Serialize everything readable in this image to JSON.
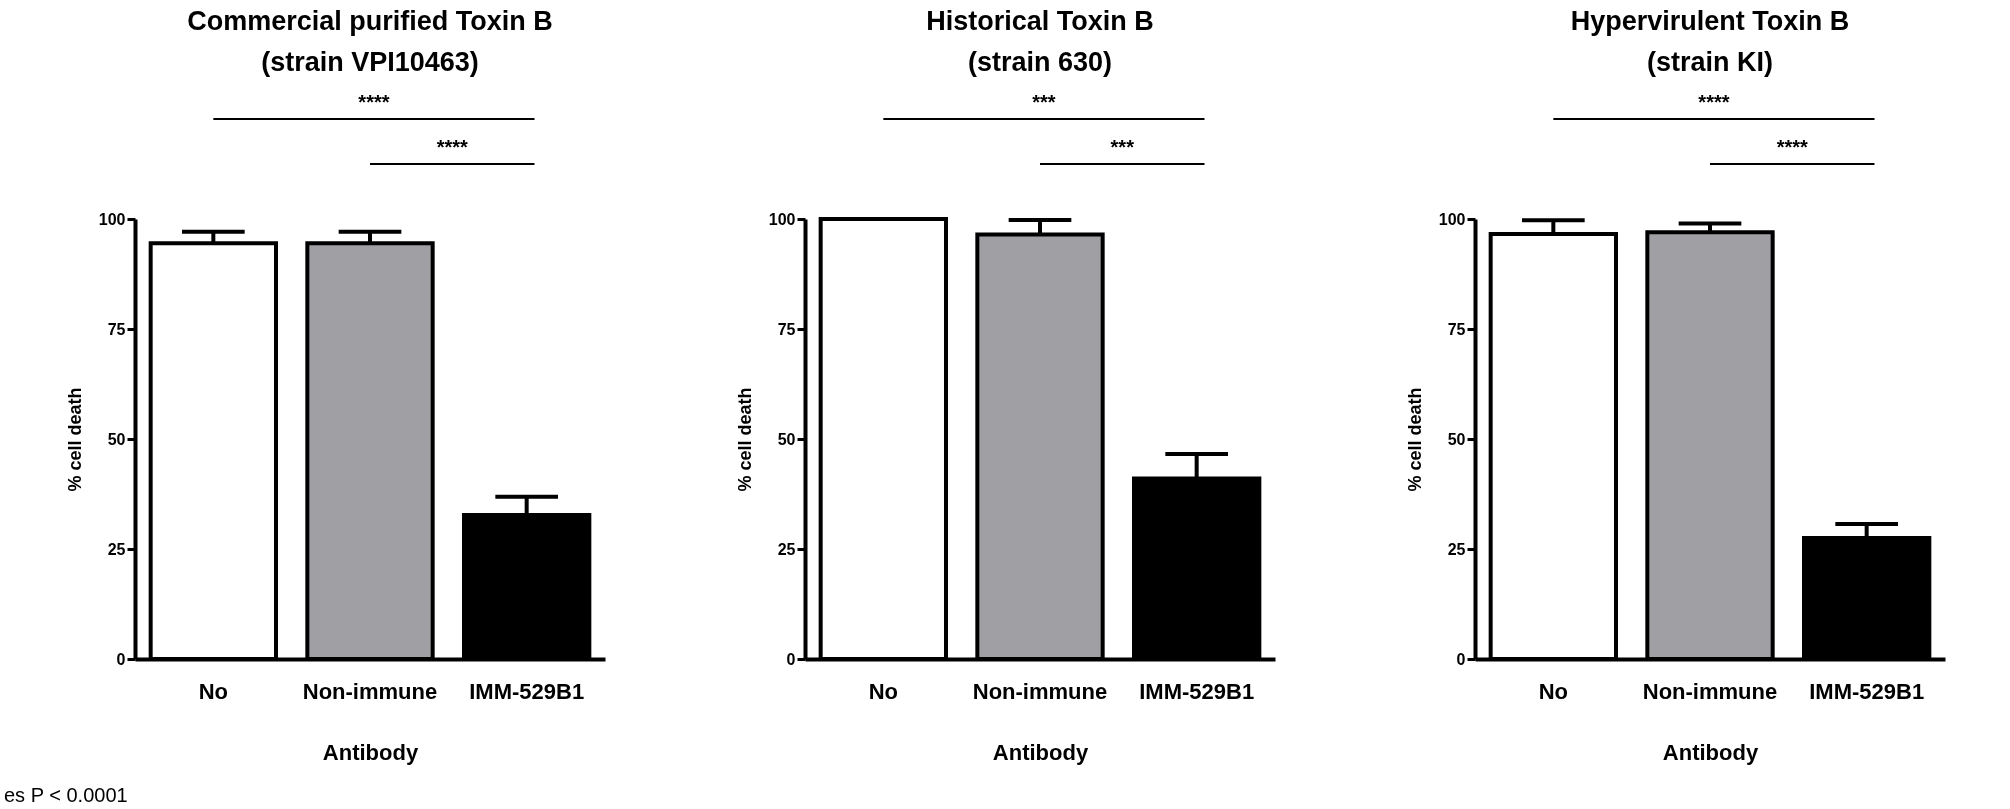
{
  "chart_data": [
    {
      "type": "bar",
      "title": "Commercial purified Toxin B",
      "subtitle": "(strain VPI10463)",
      "xlabel": "Antibody",
      "ylabel": "% cell death",
      "categories": [
        "No",
        "Non-immune",
        "IMM-529B1"
      ],
      "values": [
        94.5,
        94.5,
        32.7
      ],
      "colors": [
        "#ffffff",
        "#a0a0a4",
        "#000000"
      ],
      "errors": [
        [
          94.5,
          97.1
        ],
        [
          94.5,
          97.1
        ],
        [
          32.7,
          36.9
        ]
      ],
      "ylim": [
        0,
        100
      ],
      "yticks": [
        0,
        25,
        50,
        75,
        100
      ],
      "annotations": [
        "****",
        "****",
        "es P < 0.0001"
      ]
    },
    {
      "type": "bar",
      "title": "Historical Toxin B",
      "subtitle": "(strain 630)",
      "xlabel": "Antibody",
      "ylabel": "% cell death",
      "categories": [
        "No",
        "Non-immune",
        "IMM-529B1"
      ],
      "values": [
        100,
        96.5,
        41.0
      ],
      "colors": [
        "#ffffff",
        "#a0a0a4",
        "#000000"
      ],
      "errors": [
        null,
        [
          96.5,
          99.8
        ],
        [
          41.0,
          46.6
        ]
      ],
      "ylim": [
        0,
        100
      ],
      "yticks": [
        0,
        25,
        50,
        75,
        100
      ],
      "annotations": [
        "***",
        "***"
      ]
    },
    {
      "type": "bar",
      "title": "Hypervirulent Toxin B",
      "subtitle": "(strain KI)",
      "xlabel": "Antibody",
      "ylabel": "% cell death",
      "categories": [
        "No",
        "Non-immune",
        "IMM-529B1"
      ],
      "values": [
        96.6,
        97.0,
        27.5
      ],
      "colors": [
        "#ffffff",
        "#a0a0a4",
        "#000000"
      ],
      "errors": [
        [
          96.6,
          99.7
        ],
        [
          97.0,
          99.0
        ],
        [
          27.5,
          30.7
        ]
      ],
      "ylim": [
        0,
        100
      ],
      "yticks": [
        0,
        25,
        50,
        75,
        100
      ],
      "annotations": [
        "****",
        "****"
      ]
    }
  ]
}
